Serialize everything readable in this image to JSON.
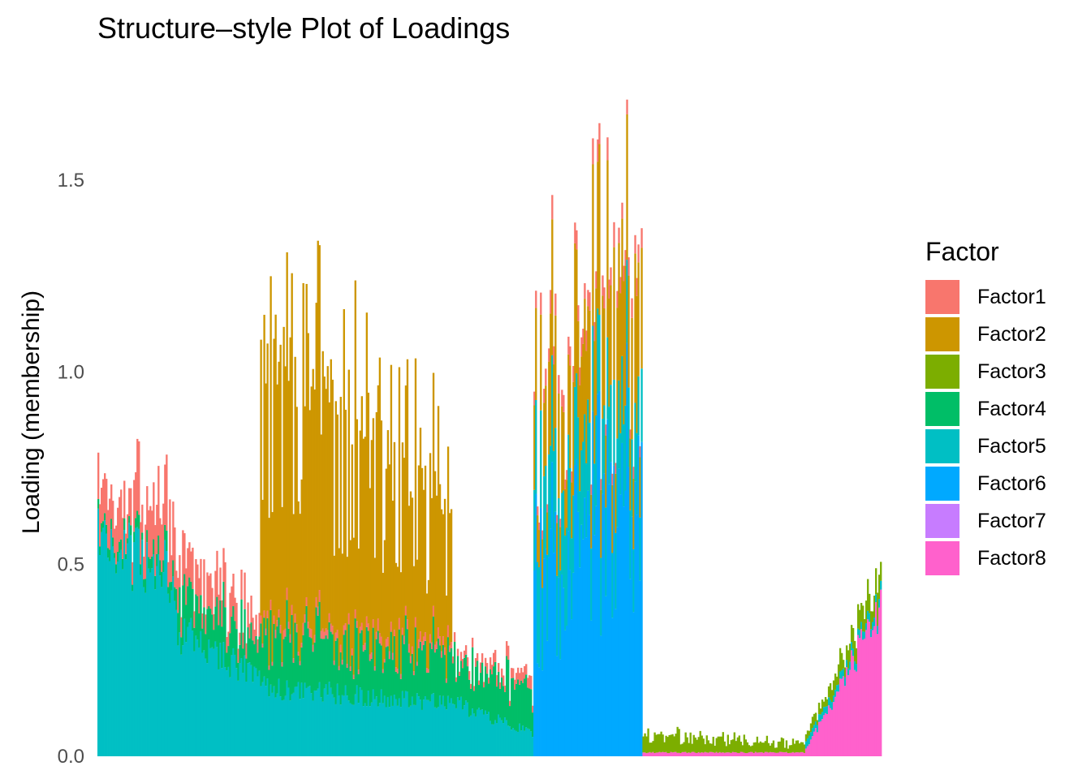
{
  "title": "Structure–style Plot of Loadings",
  "chart_data": {
    "type": "stacked-bar",
    "title": "Structure–style Plot of Loadings",
    "xlabel": "",
    "ylabel": "Loading (membership)",
    "ylim": [
      0,
      1.72
    ],
    "yticks": [
      0.0,
      0.5,
      1.0,
      1.5
    ],
    "ytick_labels": [
      "0.0",
      "0.5",
      "1.0",
      "1.5"
    ],
    "grid": false,
    "legend": {
      "title": "Factor",
      "position": "right"
    },
    "n_samples": 482,
    "series": [
      {
        "name": "Factor1",
        "color": "#F8766D"
      },
      {
        "name": "Factor2",
        "color": "#CD9600"
      },
      {
        "name": "Factor3",
        "color": "#7CAE00"
      },
      {
        "name": "Factor4",
        "color": "#00BE67"
      },
      {
        "name": "Factor5",
        "color": "#00BFC4"
      },
      {
        "name": "Factor6",
        "color": "#00A9FF"
      },
      {
        "name": "Factor7",
        "color": "#C77CFF"
      },
      {
        "name": "Factor8",
        "color": "#FF61CC"
      }
    ],
    "groups": [
      {
        "samples": [
          0,
          48
        ],
        "stack_bottom_to_top": {
          "Factor5": [
            0.56,
            0.48
          ],
          "Factor4": [
            0.02,
            0.04
          ],
          "Factor1": [
            0.1,
            0.14
          ]
        }
      },
      {
        "samples": [
          48,
          100
        ],
        "stack_bottom_to_top": {
          "Factor5": [
            0.33,
            0.2
          ],
          "Factor4": [
            0.1,
            0.1
          ],
          "Factor1": [
            0.1,
            0.06
          ]
        }
      },
      {
        "samples": [
          100,
          218
        ],
        "stack_bottom_to_top": {
          "Factor5": [
            0.18,
            0.14
          ],
          "Factor4": [
            0.15,
            0.13
          ],
          "Factor1": [
            0.02,
            0.02
          ],
          "Factor2": [
            0.75,
            0.35
          ]
        }
      },
      {
        "samples": [
          218,
          268
        ],
        "stack_bottom_to_top": {
          "Factor5": [
            0.14,
            0.06
          ],
          "Factor4": [
            0.11,
            0.12
          ],
          "Factor1": [
            0.02,
            0.03
          ]
        }
      },
      {
        "samples": [
          268,
          335
        ],
        "stack_bottom_to_top": {
          "Factor6": [
            0.45,
            0.75
          ],
          "Factor5": [
            0.25,
            0.18
          ],
          "Factor2": [
            0.2,
            0.35
          ],
          "Factor1": [
            0.04,
            0.05
          ]
        }
      },
      {
        "samples": [
          335,
          435
        ],
        "stack_bottom_to_top": {
          "Factor8": [
            0.01,
            0.01
          ],
          "Factor3": [
            0.05,
            0.02
          ]
        }
      },
      {
        "samples": [
          435,
          482
        ],
        "stack_bottom_to_top": {
          "Factor8": [
            0.02,
            0.38
          ],
          "Factor5": [
            0.02,
            0.02
          ],
          "Factor3": [
            0.02,
            0.06
          ]
        }
      }
    ],
    "max_total": 1.71
  }
}
